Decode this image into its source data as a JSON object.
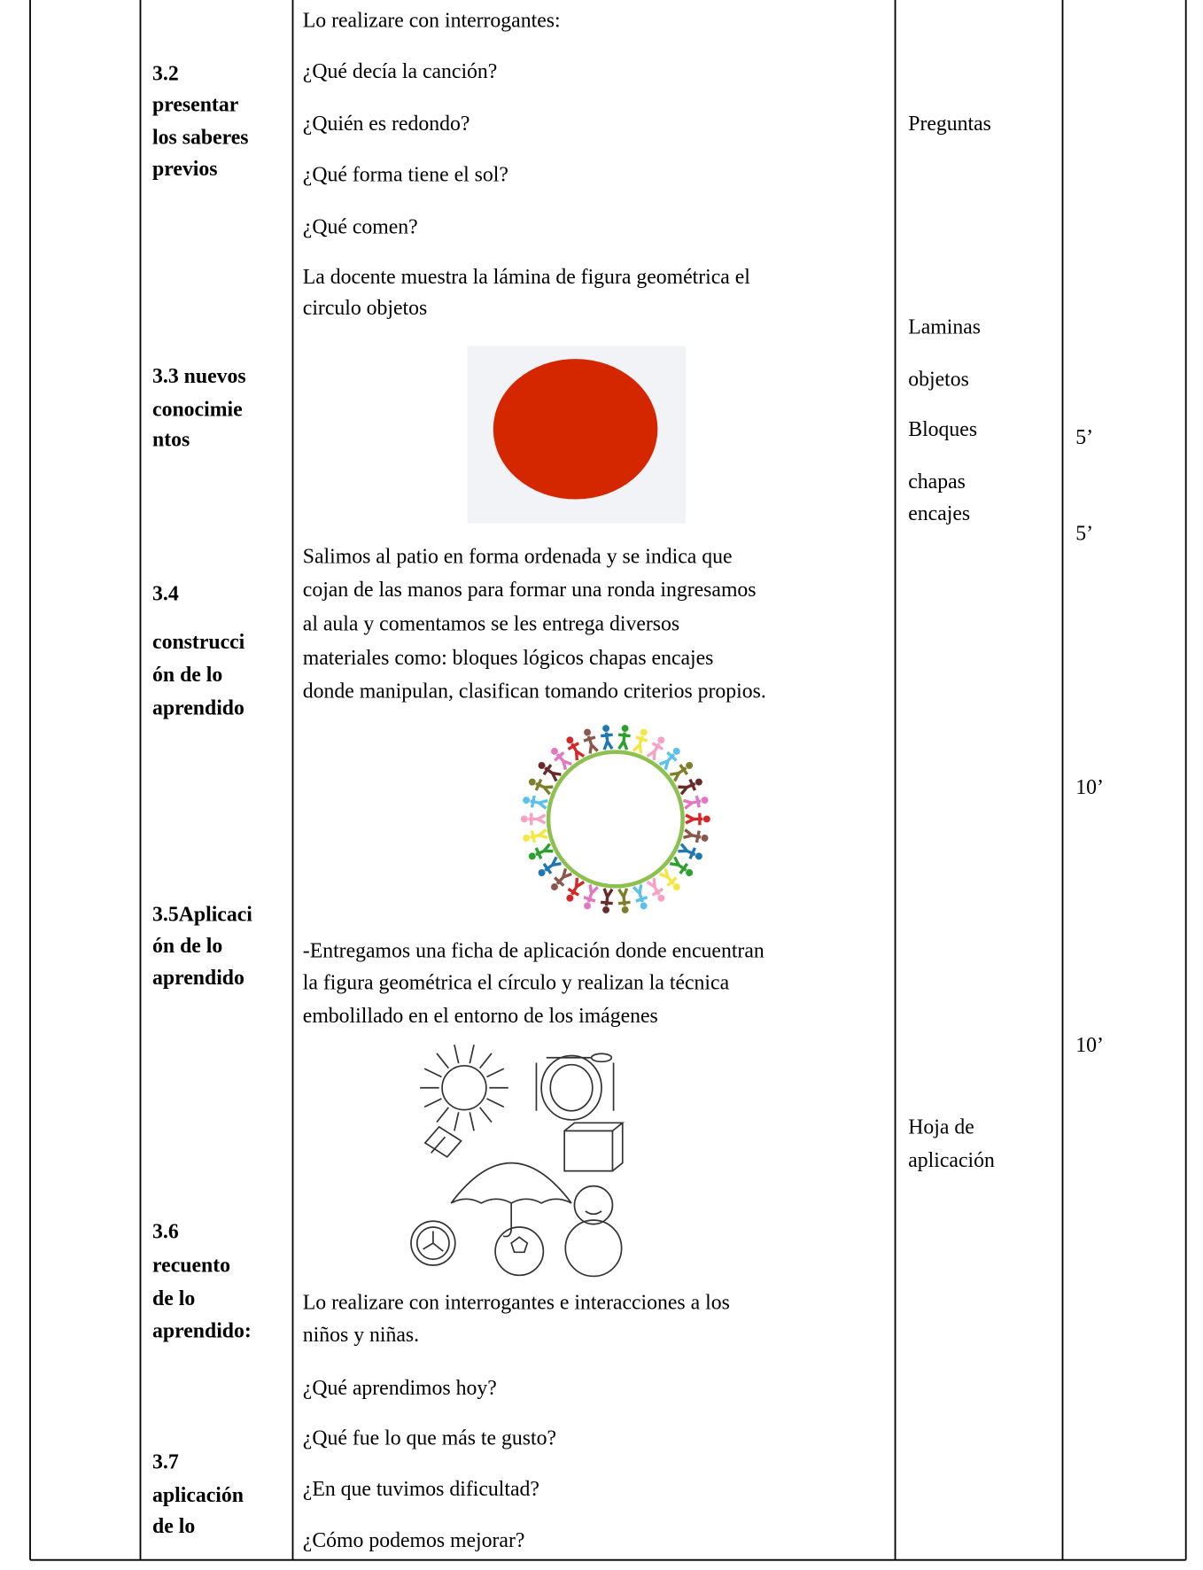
{
  "sections": [
    [
      "3.2",
      "presentar",
      "los saberes",
      "previos"
    ],
    [
      "3.3 nuevos",
      "conocimie",
      "ntos"
    ],
    [
      "3.4",
      "construcci",
      "ón de lo",
      "aprendido"
    ],
    [
      "3.5Aplicaci",
      "ón de lo",
      "aprendido"
    ],
    [
      "3.6",
      "recuento",
      "de lo",
      "aprendido:"
    ],
    [
      "3.7",
      "aplicación",
      "de lo"
    ]
  ],
  "activities": [
    [
      "Lo realizare con interrogantes:"
    ],
    [
      "¿Qué decía la canción?"
    ],
    [
      "¿Quién es redondo?"
    ],
    [
      "¿Qué forma tiene el sol?"
    ],
    [
      "¿Qué comen?"
    ],
    [
      "La docente muestra la lámina de figura geométrica el",
      "circulo objetos"
    ],
    [
      "Salimos al patio en forma ordenada y se indica que",
      "cojan de las manos para formar una ronda ingresamos",
      "al aula y comentamos se les entrega diversos",
      "materiales como: bloques lógicos chapas encajes",
      "donde manipulan, clasifican tomando criterios propios."
    ],
    [
      "-Entregamos una ficha de aplicación donde encuentran",
      "la figura geométrica el círculo y realizan la técnica",
      "embolillado en el entorno de los imágenes"
    ],
    [
      "Lo realizare con interrogantes e interacciones a los",
      "niños y niñas."
    ],
    [
      "¿Qué aprendimos hoy?"
    ],
    [
      "¿Qué fue lo que más te gusto?"
    ],
    [
      "¿En que tuvimos dificultad?"
    ],
    [
      "¿Cómo podemos mejorar?"
    ]
  ],
  "resources": [
    [
      "Preguntas"
    ],
    [
      "Laminas"
    ],
    [
      "objetos"
    ],
    [
      "Bloques"
    ],
    [
      "chapas",
      "encajes"
    ],
    [
      "Hoja de",
      "aplicación"
    ]
  ],
  "times": [
    "5’",
    "5’",
    "10’",
    "10’"
  ]
}
